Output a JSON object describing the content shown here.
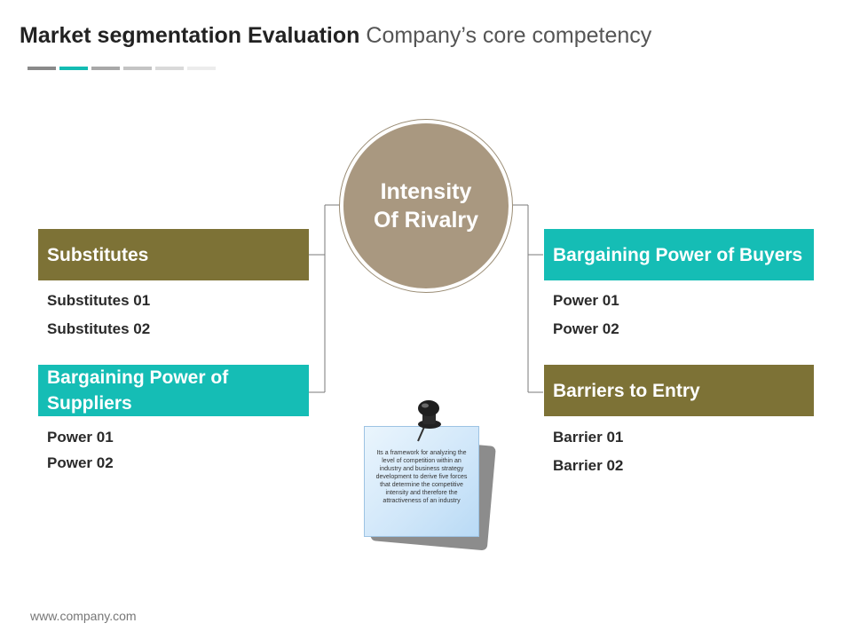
{
  "title": {
    "bold": "Market segmentation Evaluation",
    "light": "Company’s core competency"
  },
  "accent_colors": [
    "#8a8a8a",
    "#13bcb3",
    "#a8a8a8",
    "#c4c4c4",
    "#d9d9d9",
    "#ececec"
  ],
  "colors": {
    "olive": "#7d7236",
    "teal": "#15bdb5",
    "circle": "#a99880",
    "line": "#7a7a7a"
  },
  "center": {
    "line1": "Intensity",
    "line2": "Of Rivalry"
  },
  "left": {
    "substitutes": {
      "header": "Substitutes",
      "items": [
        "Substitutes 01",
        "Substitutes 02"
      ]
    },
    "suppliers": {
      "header": "Bargaining Power of Suppliers",
      "items": [
        "Power 01",
        "Power 02"
      ]
    }
  },
  "right": {
    "buyers": {
      "header": "Bargaining Power of Buyers",
      "items": [
        "Power 01",
        "Power 02"
      ]
    },
    "barriers": {
      "header": "Barriers to Entry",
      "items": [
        "Barrier 01",
        "Barrier 02"
      ]
    }
  },
  "note": {
    "text": "Its a framework for analyzing the level of competition within an industry and business strategy development to derive five forces that determine the competitive intensity and therefore the attractiveness of an industry",
    "icon": "pushpin-icon"
  },
  "footer": "www.company.com"
}
